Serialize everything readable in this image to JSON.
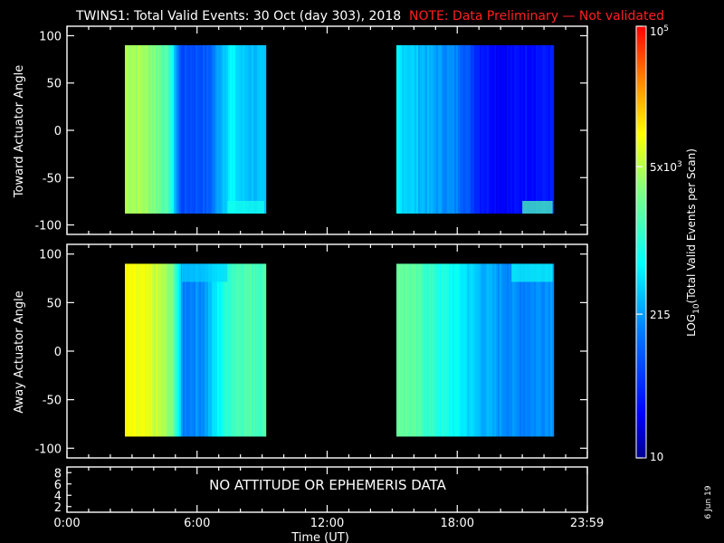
{
  "title": "TWINS1: Total Valid Events: 30 Oct (day 303), 2018",
  "note": "NOTE: Data Preliminary — Not validated",
  "date_stamp": "6 Jun 19",
  "no_data_message": "NO ATTITUDE OR EPHEMERIS DATA",
  "colors": {
    "note": "#ff2020",
    "background": "#000000",
    "axes": "#ffffff"
  },
  "chart_data": [
    {
      "type": "heatmap",
      "ylabel": "Toward Actuator Angle",
      "ylim": [
        -110,
        110
      ],
      "yticks": [
        100,
        50,
        0,
        -50,
        -100
      ],
      "xlim": [
        0,
        24
      ],
      "angle_range": [
        -88,
        90
      ],
      "segments": [
        {
          "start": 2.7,
          "end": 9.1,
          "profile": [
            [
              2.7,
              4700
            ],
            [
              3.4,
              4300
            ],
            [
              4.0,
              3000
            ],
            [
              4.7,
              1400
            ],
            [
              5.2,
              70
            ],
            [
              6.5,
              90
            ],
            [
              7.0,
              260
            ],
            [
              7.5,
              600
            ],
            [
              8.0,
              350
            ],
            [
              9.1,
              280
            ]
          ],
          "bottom_feature": {
            "start": 7.4,
            "end": 9.1,
            "value": 800
          }
        },
        {
          "start": 15.2,
          "end": 22.4,
          "profile": [
            [
              15.2,
              520
            ],
            [
              16.0,
              350
            ],
            [
              17.0,
              220
            ],
            [
              18.0,
              150
            ],
            [
              19.0,
              40
            ],
            [
              20.0,
              25
            ],
            [
              21.0,
              30
            ],
            [
              22.4,
              35
            ]
          ],
          "bottom_feature": {
            "start": 21.0,
            "end": 22.4,
            "value": 1500
          }
        }
      ]
    },
    {
      "type": "heatmap",
      "ylabel": "Away Actuator Angle",
      "ylim": [
        -110,
        110
      ],
      "yticks": [
        100,
        50,
        0,
        -50,
        -100
      ],
      "xlim": [
        0,
        24
      ],
      "angle_range": [
        -88,
        90
      ],
      "segments": [
        {
          "start": 2.7,
          "end": 9.1,
          "profile": [
            [
              2.7,
              9000
            ],
            [
              3.6,
              7500
            ],
            [
              4.3,
              5000
            ],
            [
              4.9,
              2300
            ],
            [
              5.3,
              150
            ],
            [
              6.3,
              200
            ],
            [
              7.0,
              650
            ],
            [
              7.5,
              1300
            ],
            [
              8.0,
              1700
            ],
            [
              9.1,
              1500
            ]
          ],
          "top_feature": {
            "start": 5.3,
            "end": 7.4,
            "value": 400
          }
        },
        {
          "start": 15.2,
          "end": 22.4,
          "profile": [
            [
              15.2,
              2500
            ],
            [
              16.0,
              1800
            ],
            [
              17.0,
              1000
            ],
            [
              18.0,
              600
            ],
            [
              19.0,
              300
            ],
            [
              20.0,
              200
            ],
            [
              21.0,
              160
            ],
            [
              22.4,
              220
            ]
          ],
          "top_feature": {
            "start": 20.5,
            "end": 22.4,
            "value": 700
          }
        }
      ]
    },
    {
      "type": "line",
      "yticks": [
        "8",
        "6",
        "4",
        "2"
      ],
      "ylim": [
        1,
        9
      ],
      "xlim": [
        0,
        24
      ],
      "xticks": [
        {
          "value": 0,
          "label": "0:00"
        },
        {
          "value": 6,
          "label": "6:00"
        },
        {
          "value": 12,
          "label": "12:00"
        },
        {
          "value": 18,
          "label": "18:00"
        },
        {
          "value": 23.983,
          "label": "23:59"
        }
      ],
      "xlabel": "Time (UT)"
    }
  ],
  "colorbar": {
    "label": "LOG10(Total Valid Events per Scan)",
    "label_base": "LOG",
    "label_sub": "10",
    "label_rest": "(Total Valid Events per Scan)",
    "range": [
      10,
      100000
    ],
    "scale": "log",
    "ticks": [
      {
        "value": 100000,
        "label": "10",
        "sup": "5"
      },
      {
        "value": 5000,
        "label": "5x10",
        "sup": "3"
      },
      {
        "value": 215,
        "label": "215",
        "sup": ""
      },
      {
        "value": 10,
        "label": "10",
        "sup": ""
      }
    ]
  }
}
